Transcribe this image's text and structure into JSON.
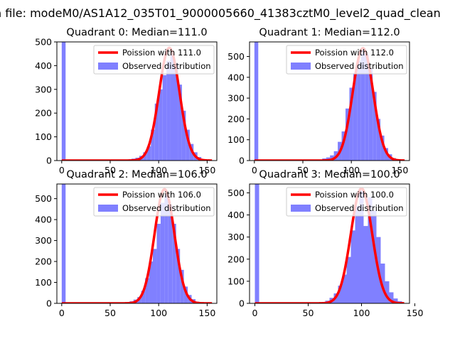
{
  "suptitle": "n file: modeM0/AS1A12_035T01_9000005660_41383cztM0_level2_quad_clean",
  "colors": {
    "histogram": "#8080ff",
    "poisson": "#ff0000",
    "zero_bar": "#8080ff"
  },
  "chart_data": [
    {
      "type": "bar",
      "title": "Quadrant 0: Median=111.0",
      "xlim": [
        -5,
        160
      ],
      "ylim": [
        0,
        500
      ],
      "xticks": [
        0,
        50,
        100,
        150
      ],
      "yticks": [
        0,
        100,
        200,
        300,
        400,
        500
      ],
      "zero_bin": {
        "x": 0,
        "value": 500,
        "clipped": true
      },
      "bins": [
        {
          "x": 68,
          "v": 5
        },
        {
          "x": 72,
          "v": 8
        },
        {
          "x": 76,
          "v": 12
        },
        {
          "x": 80,
          "v": 20
        },
        {
          "x": 84,
          "v": 35
        },
        {
          "x": 88,
          "v": 60
        },
        {
          "x": 92,
          "v": 130
        },
        {
          "x": 96,
          "v": 240
        },
        {
          "x": 100,
          "v": 300
        },
        {
          "x": 104,
          "v": 360
        },
        {
          "x": 108,
          "v": 420
        },
        {
          "x": 112,
          "v": 450
        },
        {
          "x": 116,
          "v": 410
        },
        {
          "x": 120,
          "v": 320
        },
        {
          "x": 124,
          "v": 210
        },
        {
          "x": 128,
          "v": 130
        },
        {
          "x": 132,
          "v": 70
        },
        {
          "x": 136,
          "v": 35
        },
        {
          "x": 140,
          "v": 15
        },
        {
          "x": 144,
          "v": 6
        }
      ],
      "poisson": {
        "label": "Poission with 111.0",
        "mean": 111,
        "peak": 475,
        "xmin": 0,
        "xmax": 155
      },
      "legend": {
        "line": "Poission with 111.0",
        "patch": "Observed distribution",
        "position": "upper right"
      }
    },
    {
      "type": "bar",
      "title": "Quadrant 1: Median=112.0",
      "xlim": [
        -5,
        160
      ],
      "ylim": [
        0,
        570
      ],
      "xticks": [
        0,
        50,
        100,
        150
      ],
      "yticks": [
        0,
        100,
        200,
        300,
        400,
        500
      ],
      "zero_bin": {
        "x": 0,
        "value": 570,
        "clipped": true
      },
      "bins": [
        {
          "x": 66,
          "v": 5
        },
        {
          "x": 70,
          "v": 10
        },
        {
          "x": 74,
          "v": 15
        },
        {
          "x": 78,
          "v": 25
        },
        {
          "x": 82,
          "v": 45
        },
        {
          "x": 86,
          "v": 90
        },
        {
          "x": 90,
          "v": 140
        },
        {
          "x": 94,
          "v": 250
        },
        {
          "x": 98,
          "v": 350
        },
        {
          "x": 102,
          "v": 420
        },
        {
          "x": 106,
          "v": 480
        },
        {
          "x": 110,
          "v": 530
        },
        {
          "x": 114,
          "v": 510
        },
        {
          "x": 118,
          "v": 440
        },
        {
          "x": 122,
          "v": 330
        },
        {
          "x": 126,
          "v": 200
        },
        {
          "x": 130,
          "v": 120
        },
        {
          "x": 134,
          "v": 60
        },
        {
          "x": 138,
          "v": 30
        },
        {
          "x": 142,
          "v": 12
        }
      ],
      "poisson": {
        "label": "Poission with 112.0",
        "mean": 112,
        "peak": 540,
        "xmin": 0,
        "xmax": 155
      },
      "legend": {
        "line": "Poission with 112.0",
        "patch": "Observed distribution",
        "position": "upper right"
      }
    },
    {
      "type": "bar",
      "title": "Quadrant 2: Median=106.0",
      "xlim": [
        -5,
        160
      ],
      "ylim": [
        0,
        570
      ],
      "xticks": [
        0,
        50,
        100,
        150
      ],
      "yticks": [
        0,
        100,
        200,
        300,
        400,
        500
      ],
      "zero_bin": {
        "x": 0,
        "value": 570,
        "clipped": true
      },
      "bins": [
        {
          "x": 66,
          "v": 5
        },
        {
          "x": 70,
          "v": 10
        },
        {
          "x": 74,
          "v": 18
        },
        {
          "x": 78,
          "v": 30
        },
        {
          "x": 82,
          "v": 60
        },
        {
          "x": 86,
          "v": 120
        },
        {
          "x": 90,
          "v": 200
        },
        {
          "x": 94,
          "v": 260
        },
        {
          "x": 98,
          "v": 380
        },
        {
          "x": 102,
          "v": 480
        },
        {
          "x": 106,
          "v": 520
        },
        {
          "x": 110,
          "v": 470
        },
        {
          "x": 114,
          "v": 380
        },
        {
          "x": 118,
          "v": 260
        },
        {
          "x": 122,
          "v": 160
        },
        {
          "x": 126,
          "v": 80
        },
        {
          "x": 130,
          "v": 40
        },
        {
          "x": 134,
          "v": 20
        },
        {
          "x": 138,
          "v": 8
        }
      ],
      "poisson": {
        "label": "Poission with 106.0",
        "mean": 106,
        "peak": 545,
        "xmin": 0,
        "xmax": 155
      },
      "legend": {
        "line": "Poission with 106.0",
        "patch": "Observed distribution",
        "position": "upper right"
      }
    },
    {
      "type": "bar",
      "title": "Quadrant 3: Median=100.0",
      "xlim": [
        -5,
        145
      ],
      "ylim": [
        0,
        540
      ],
      "xticks": [
        0,
        50,
        100,
        150
      ],
      "yticks": [
        0,
        100,
        200,
        300,
        400,
        500
      ],
      "zero_bin": {
        "x": 0,
        "value": 540,
        "clipped": true
      },
      "bins": [
        {
          "x": 62,
          "v": 5
        },
        {
          "x": 66,
          "v": 12
        },
        {
          "x": 70,
          "v": 25
        },
        {
          "x": 74,
          "v": 45
        },
        {
          "x": 78,
          "v": 80
        },
        {
          "x": 82,
          "v": 130
        },
        {
          "x": 86,
          "v": 210
        },
        {
          "x": 90,
          "v": 330
        },
        {
          "x": 94,
          "v": 440
        },
        {
          "x": 98,
          "v": 510
        },
        {
          "x": 102,
          "v": 350
        },
        {
          "x": 106,
          "v": 480
        },
        {
          "x": 110,
          "v": 420
        },
        {
          "x": 114,
          "v": 300
        },
        {
          "x": 118,
          "v": 180
        },
        {
          "x": 122,
          "v": 100
        },
        {
          "x": 126,
          "v": 50
        },
        {
          "x": 130,
          "v": 22
        },
        {
          "x": 134,
          "v": 10
        }
      ],
      "poisson": {
        "label": "Poission with 100.0",
        "mean": 100,
        "peak": 520,
        "xmin": 0,
        "xmax": 140
      },
      "legend": {
        "line": "Poission with 100.0",
        "patch": "Observed distribution",
        "position": "upper right"
      }
    }
  ]
}
